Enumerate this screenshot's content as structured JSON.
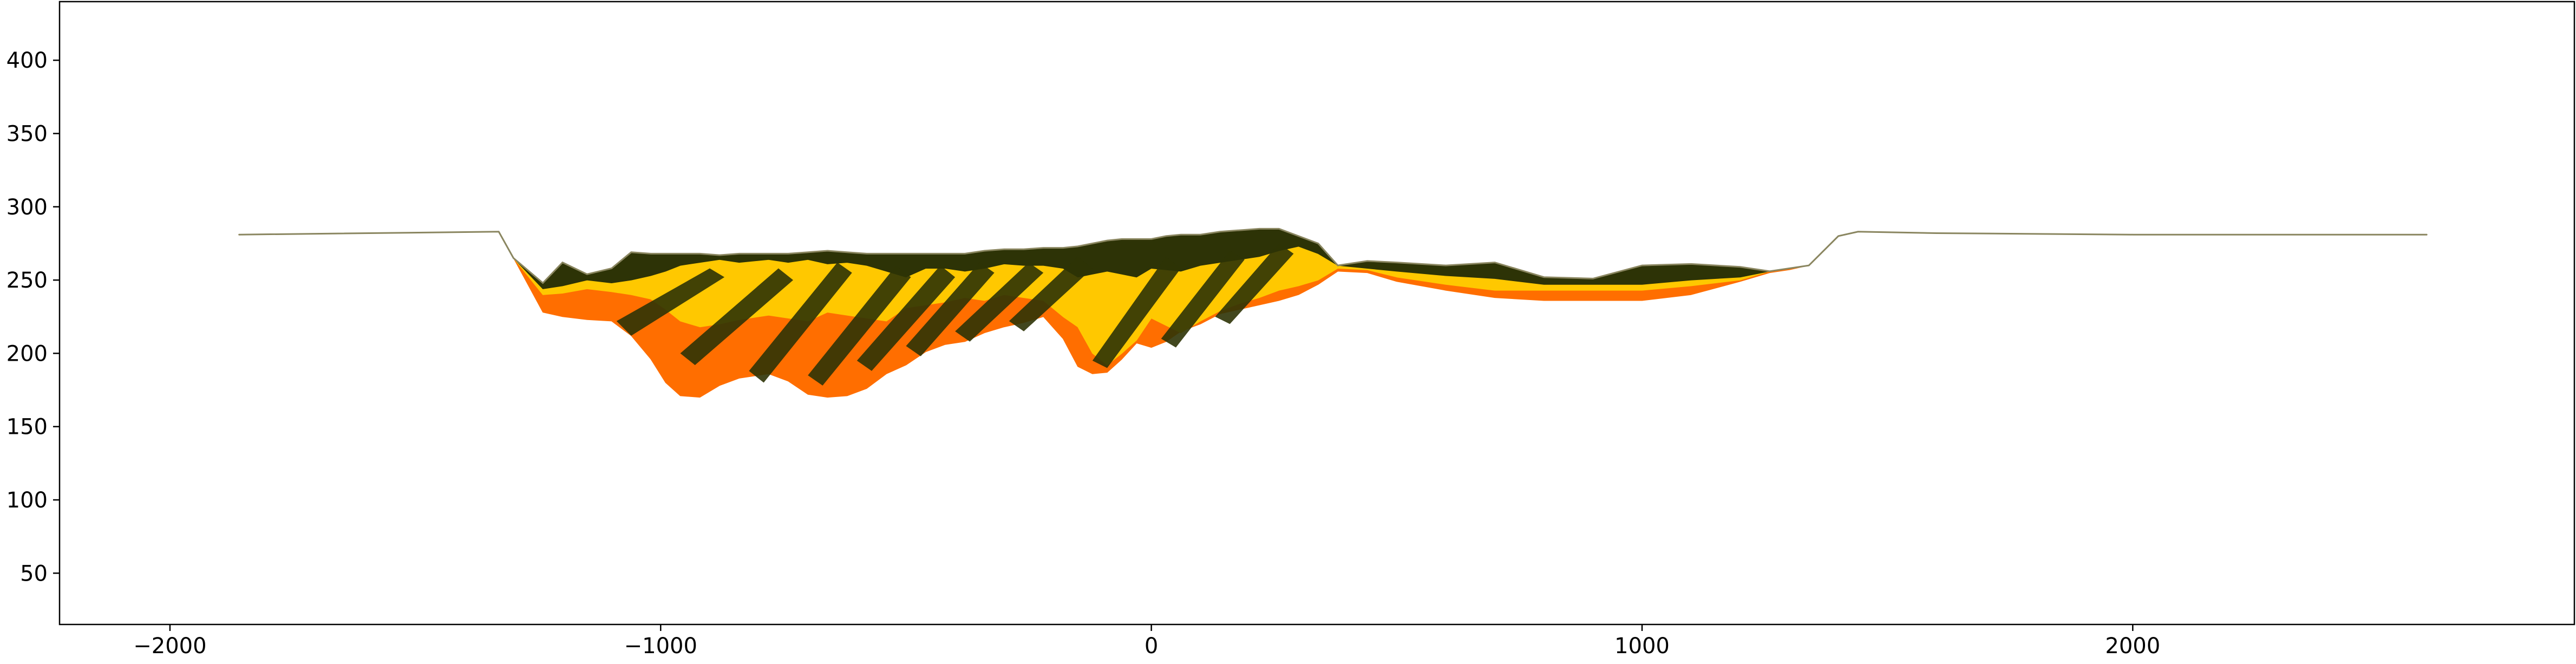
{
  "chart_data": {
    "type": "area",
    "title": "",
    "xlabel": "",
    "ylabel": "",
    "xlim": [
      -2225,
      2900
    ],
    "ylim": [
      15,
      440
    ],
    "grid": false,
    "legend": "none",
    "xticks": [
      -2000,
      -1000,
      0,
      1000,
      2000
    ],
    "xtick_labels": [
      "−2000",
      "−1000",
      "0",
      "1000",
      "2000"
    ],
    "yticks": [
      50,
      100,
      150,
      200,
      250,
      300,
      350,
      400
    ],
    "ytick_labels": [
      "50",
      "100",
      "150",
      "200",
      "250",
      "300",
      "350",
      "400"
    ],
    "colors": {
      "dark_layer": "#2d3306",
      "yellow_layer": "#ffc800",
      "orange_layer": "#ff6e00",
      "top_edge": "#8a8660"
    },
    "series": [
      {
        "name": "orange_layer",
        "color": "#ff6e00",
        "x": [
          -1860,
          -1330,
          -1300,
          -1240,
          -1200,
          -1150,
          -1100,
          -1060,
          -1020,
          -990,
          -960,
          -920,
          -880,
          -840,
          -780,
          -740,
          -700,
          -660,
          -620,
          -580,
          -540,
          -500,
          -460,
          -420,
          -380,
          -340,
          -300,
          -260,
          -220,
          -180,
          -150,
          -120,
          -90,
          -60,
          -30,
          0,
          30,
          60,
          100,
          140,
          180,
          220,
          260,
          300,
          340,
          380,
          440,
          500,
          600,
          700,
          800,
          900,
          1000,
          1100,
          1200,
          1260,
          1300,
          1340,
          1400,
          1440,
          1600,
          2000,
          2600
        ],
        "top": [
          281,
          283,
          265,
          240,
          241,
          244,
          242,
          240,
          237,
          230,
          222,
          218,
          220,
          223,
          226,
          224,
          222,
          228,
          226,
          224,
          222,
          231,
          233,
          235,
          238,
          236,
          240,
          238,
          236,
          225,
          218,
          200,
          192,
          200,
          209,
          224,
          219,
          214,
          222,
          229,
          234,
          238,
          243,
          246,
          250,
          258,
          257,
          252,
          247,
          243,
          243,
          243,
          243,
          246,
          250,
          256,
          258,
          260,
          280,
          283,
          282,
          281,
          281
        ],
        "bottom": [
          281,
          283,
          265,
          228,
          225,
          223,
          222,
          212,
          196,
          180,
          171,
          170,
          178,
          183,
          186,
          181,
          172,
          170,
          171,
          176,
          186,
          192,
          201,
          206,
          208,
          214,
          218,
          221,
          225,
          210,
          191,
          186,
          187,
          196,
          207,
          204,
          208,
          215,
          220,
          227,
          230,
          233,
          236,
          240,
          247,
          256,
          255,
          249,
          243,
          238,
          236,
          236,
          236,
          240,
          249,
          255,
          257,
          260,
          280,
          283,
          282,
          281,
          281
        ]
      },
      {
        "name": "yellow_layer",
        "color": "#ffc800",
        "x": [
          -1860,
          -1330,
          -1300,
          -1240,
          -1200,
          -1150,
          -1100,
          -1060,
          -1020,
          -990,
          -960,
          -920,
          -880,
          -840,
          -780,
          -740,
          -700,
          -660,
          -620,
          -580,
          -540,
          -500,
          -460,
          -420,
          -380,
          -340,
          -300,
          -260,
          -220,
          -180,
          -150,
          -120,
          -90,
          -60,
          -30,
          0,
          30,
          60,
          100,
          140,
          180,
          220,
          260,
          300,
          340,
          380,
          440,
          500,
          600,
          700,
          800,
          900,
          1000,
          1100,
          1200,
          1260,
          1300,
          1340,
          1400,
          1440,
          1600,
          2000,
          2600
        ],
        "top": [
          281,
          283,
          265,
          244,
          246,
          250,
          248,
          250,
          253,
          256,
          260,
          262,
          264,
          262,
          264,
          262,
          264,
          261,
          262,
          260,
          256,
          252,
          258,
          258,
          256,
          258,
          261,
          260,
          260,
          258,
          252,
          254,
          256,
          254,
          252,
          258,
          257,
          256,
          260,
          262,
          264,
          266,
          270,
          273,
          268,
          260,
          258,
          256,
          253,
          251,
          247,
          247,
          247,
          250,
          252,
          256,
          258,
          260,
          280,
          283,
          282,
          281,
          281
        ],
        "bottom": [
          281,
          283,
          265,
          240,
          241,
          244,
          242,
          240,
          237,
          230,
          222,
          218,
          220,
          223,
          226,
          224,
          222,
          228,
          226,
          224,
          222,
          231,
          233,
          235,
          238,
          236,
          240,
          238,
          236,
          225,
          218,
          200,
          192,
          200,
          209,
          224,
          219,
          214,
          222,
          229,
          234,
          238,
          243,
          246,
          250,
          258,
          257,
          252,
          247,
          243,
          243,
          243,
          243,
          246,
          250,
          256,
          258,
          260,
          280,
          283,
          282,
          281,
          281
        ]
      },
      {
        "name": "dark_layer",
        "color": "#2d3306",
        "x": [
          -1860,
          -1330,
          -1300,
          -1240,
          -1200,
          -1150,
          -1100,
          -1060,
          -1020,
          -990,
          -960,
          -920,
          -880,
          -840,
          -780,
          -740,
          -700,
          -660,
          -620,
          -580,
          -540,
          -500,
          -460,
          -420,
          -380,
          -340,
          -300,
          -260,
          -220,
          -180,
          -150,
          -120,
          -90,
          -60,
          -30,
          0,
          30,
          60,
          100,
          140,
          180,
          220,
          260,
          300,
          340,
          380,
          440,
          500,
          600,
          700,
          800,
          900,
          1000,
          1100,
          1200,
          1260,
          1300,
          1340,
          1400,
          1440,
          1600,
          2000,
          2600
        ],
        "top": [
          281,
          283,
          265,
          248,
          262,
          254,
          258,
          269,
          268,
          268,
          268,
          268,
          267,
          268,
          268,
          268,
          269,
          270,
          269,
          268,
          268,
          268,
          268,
          268,
          268,
          270,
          271,
          271,
          272,
          272,
          273,
          275,
          277,
          278,
          278,
          278,
          280,
          281,
          281,
          283,
          284,
          285,
          285,
          280,
          275,
          260,
          263,
          262,
          260,
          262,
          252,
          251,
          260,
          261,
          259,
          256,
          258,
          260,
          280,
          283,
          282,
          281,
          281
        ],
        "bottom": [
          281,
          283,
          265,
          244,
          246,
          250,
          248,
          250,
          253,
          256,
          260,
          262,
          264,
          262,
          264,
          262,
          264,
          261,
          262,
          260,
          256,
          252,
          258,
          258,
          256,
          258,
          261,
          260,
          260,
          258,
          252,
          254,
          256,
          254,
          252,
          258,
          257,
          256,
          260,
          262,
          264,
          266,
          270,
          273,
          268,
          260,
          258,
          256,
          253,
          251,
          247,
          247,
          247,
          250,
          252,
          256,
          258,
          260,
          280,
          283,
          282,
          281,
          281
        ]
      }
    ],
    "diagonal_dark_bands": [
      {
        "x": [
          -1090,
          -900,
          -870,
          -1060
        ],
        "y": [
          222,
          258,
          252,
          212
        ]
      },
      {
        "x": [
          -960,
          -760,
          -730,
          -930
        ],
        "y": [
          200,
          258,
          250,
          192
        ]
      },
      {
        "x": [
          -820,
          -640,
          -610,
          -790
        ],
        "y": [
          188,
          262,
          255,
          180
        ]
      },
      {
        "x": [
          -700,
          -520,
          -490,
          -670
        ],
        "y": [
          185,
          260,
          252,
          178
        ]
      },
      {
        "x": [
          -600,
          -430,
          -400,
          -570
        ],
        "y": [
          195,
          260,
          252,
          188
        ]
      },
      {
        "x": [
          -500,
          -350,
          -320,
          -470
        ],
        "y": [
          205,
          262,
          255,
          198
        ]
      },
      {
        "x": [
          -400,
          -250,
          -220,
          -370
        ],
        "y": [
          215,
          262,
          255,
          208
        ]
      },
      {
        "x": [
          -290,
          -150,
          -120,
          -260
        ],
        "y": [
          222,
          266,
          258,
          215
        ]
      },
      {
        "x": [
          -120,
          30,
          60,
          -90
        ],
        "y": [
          195,
          266,
          258,
          190
        ]
      },
      {
        "x": [
          20,
          160,
          190,
          50
        ],
        "y": [
          210,
          270,
          264,
          204
        ]
      },
      {
        "x": [
          130,
          260,
          290,
          160
        ],
        "y": [
          225,
          275,
          268,
          220
        ]
      }
    ]
  }
}
